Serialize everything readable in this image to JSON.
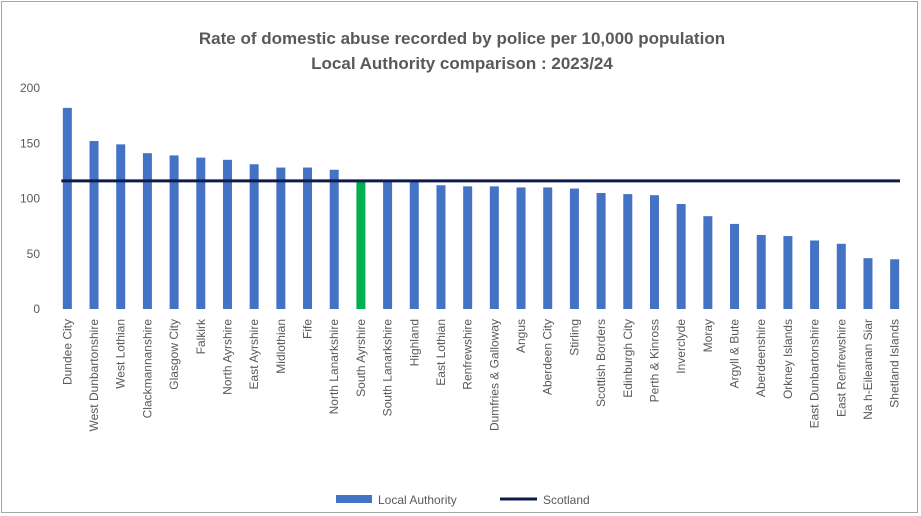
{
  "chart_data": {
    "type": "bar",
    "title": "Rate of domestic abuse recorded by police per 10,000 population",
    "subtitle": "Local Authority comparison : 2023/24",
    "xlabel": "",
    "ylabel": "",
    "ylim": [
      0,
      200
    ],
    "yticks": [
      "0",
      "50",
      "100",
      "150",
      "200"
    ],
    "grid": false,
    "legend_position": "bottom",
    "colors": {
      "bar": "#4472c4",
      "highlight": "#00b050",
      "scotland_line": "#0d1b4c"
    },
    "highlight_category": "South Ayrshire",
    "categories": [
      "Dundee City",
      "West Dunbartonshire",
      "West Lothian",
      "Clackmannanshire",
      "Glasgow City",
      "Falkirk",
      "North Ayrshire",
      "East Ayrshire",
      "Midlothian",
      "Fife",
      "North Lanarkshire",
      "South Ayrshire",
      "South Lanarkshire",
      "Highland",
      "East Lothian",
      "Renfrewshire",
      "Dumfries & Galloway",
      "Angus",
      "Aberdeen City",
      "Stirling",
      "Scottish Borders",
      "Edinburgh City",
      "Perth & Kinross",
      "Inverclyde",
      "Moray",
      "Argyll & Bute",
      "Aberdeenshire",
      "Orkney Islands",
      "East Dunbartonshire",
      "East Renfrewshire",
      "Na h-Eileanan Siar",
      "Shetland Islands"
    ],
    "series": [
      {
        "name": "Local Authority",
        "type": "bar",
        "values": [
          182,
          152,
          149,
          141,
          139,
          137,
          135,
          131,
          128,
          128,
          126,
          115,
          115,
          115,
          112,
          111,
          111,
          110,
          110,
          109,
          105,
          104,
          103,
          95,
          84,
          77,
          67,
          66,
          62,
          59,
          46,
          45
        ]
      },
      {
        "name": "Scotland",
        "type": "line",
        "value": 116
      }
    ]
  }
}
